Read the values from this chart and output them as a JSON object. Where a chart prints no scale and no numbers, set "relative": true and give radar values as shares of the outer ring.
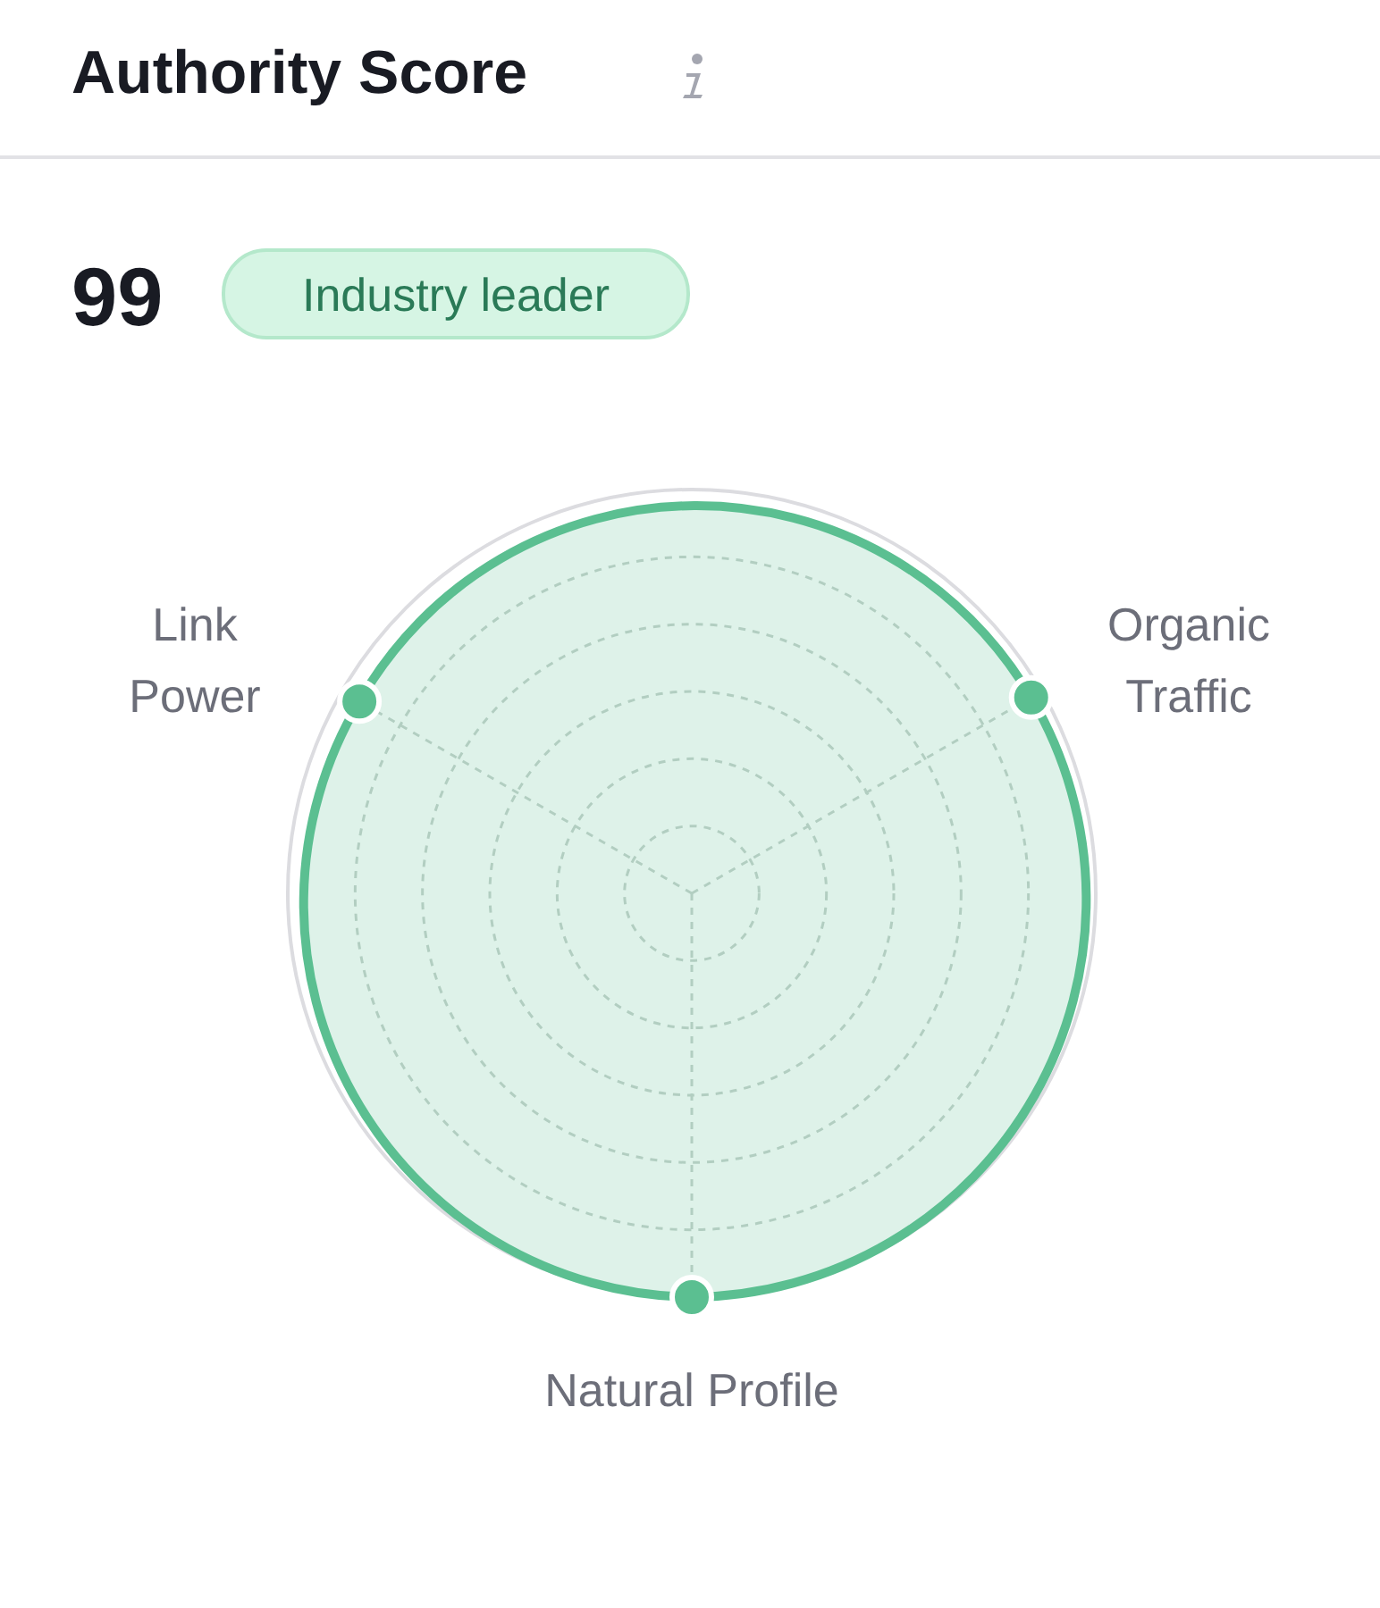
{
  "chart_data": {
    "type": "radar",
    "title": "Authority Score",
    "annotations": [
      "99",
      "Industry leader"
    ],
    "categories": [
      "Organic Traffic",
      "Natural Profile",
      "Link Power"
    ],
    "relative": true,
    "grid": true,
    "marker": "circle",
    "series": [
      {
        "color": "#5bbf91",
        "values": [
          0.97,
          1,
          0.95
        ]
      }
    ]
  }
}
